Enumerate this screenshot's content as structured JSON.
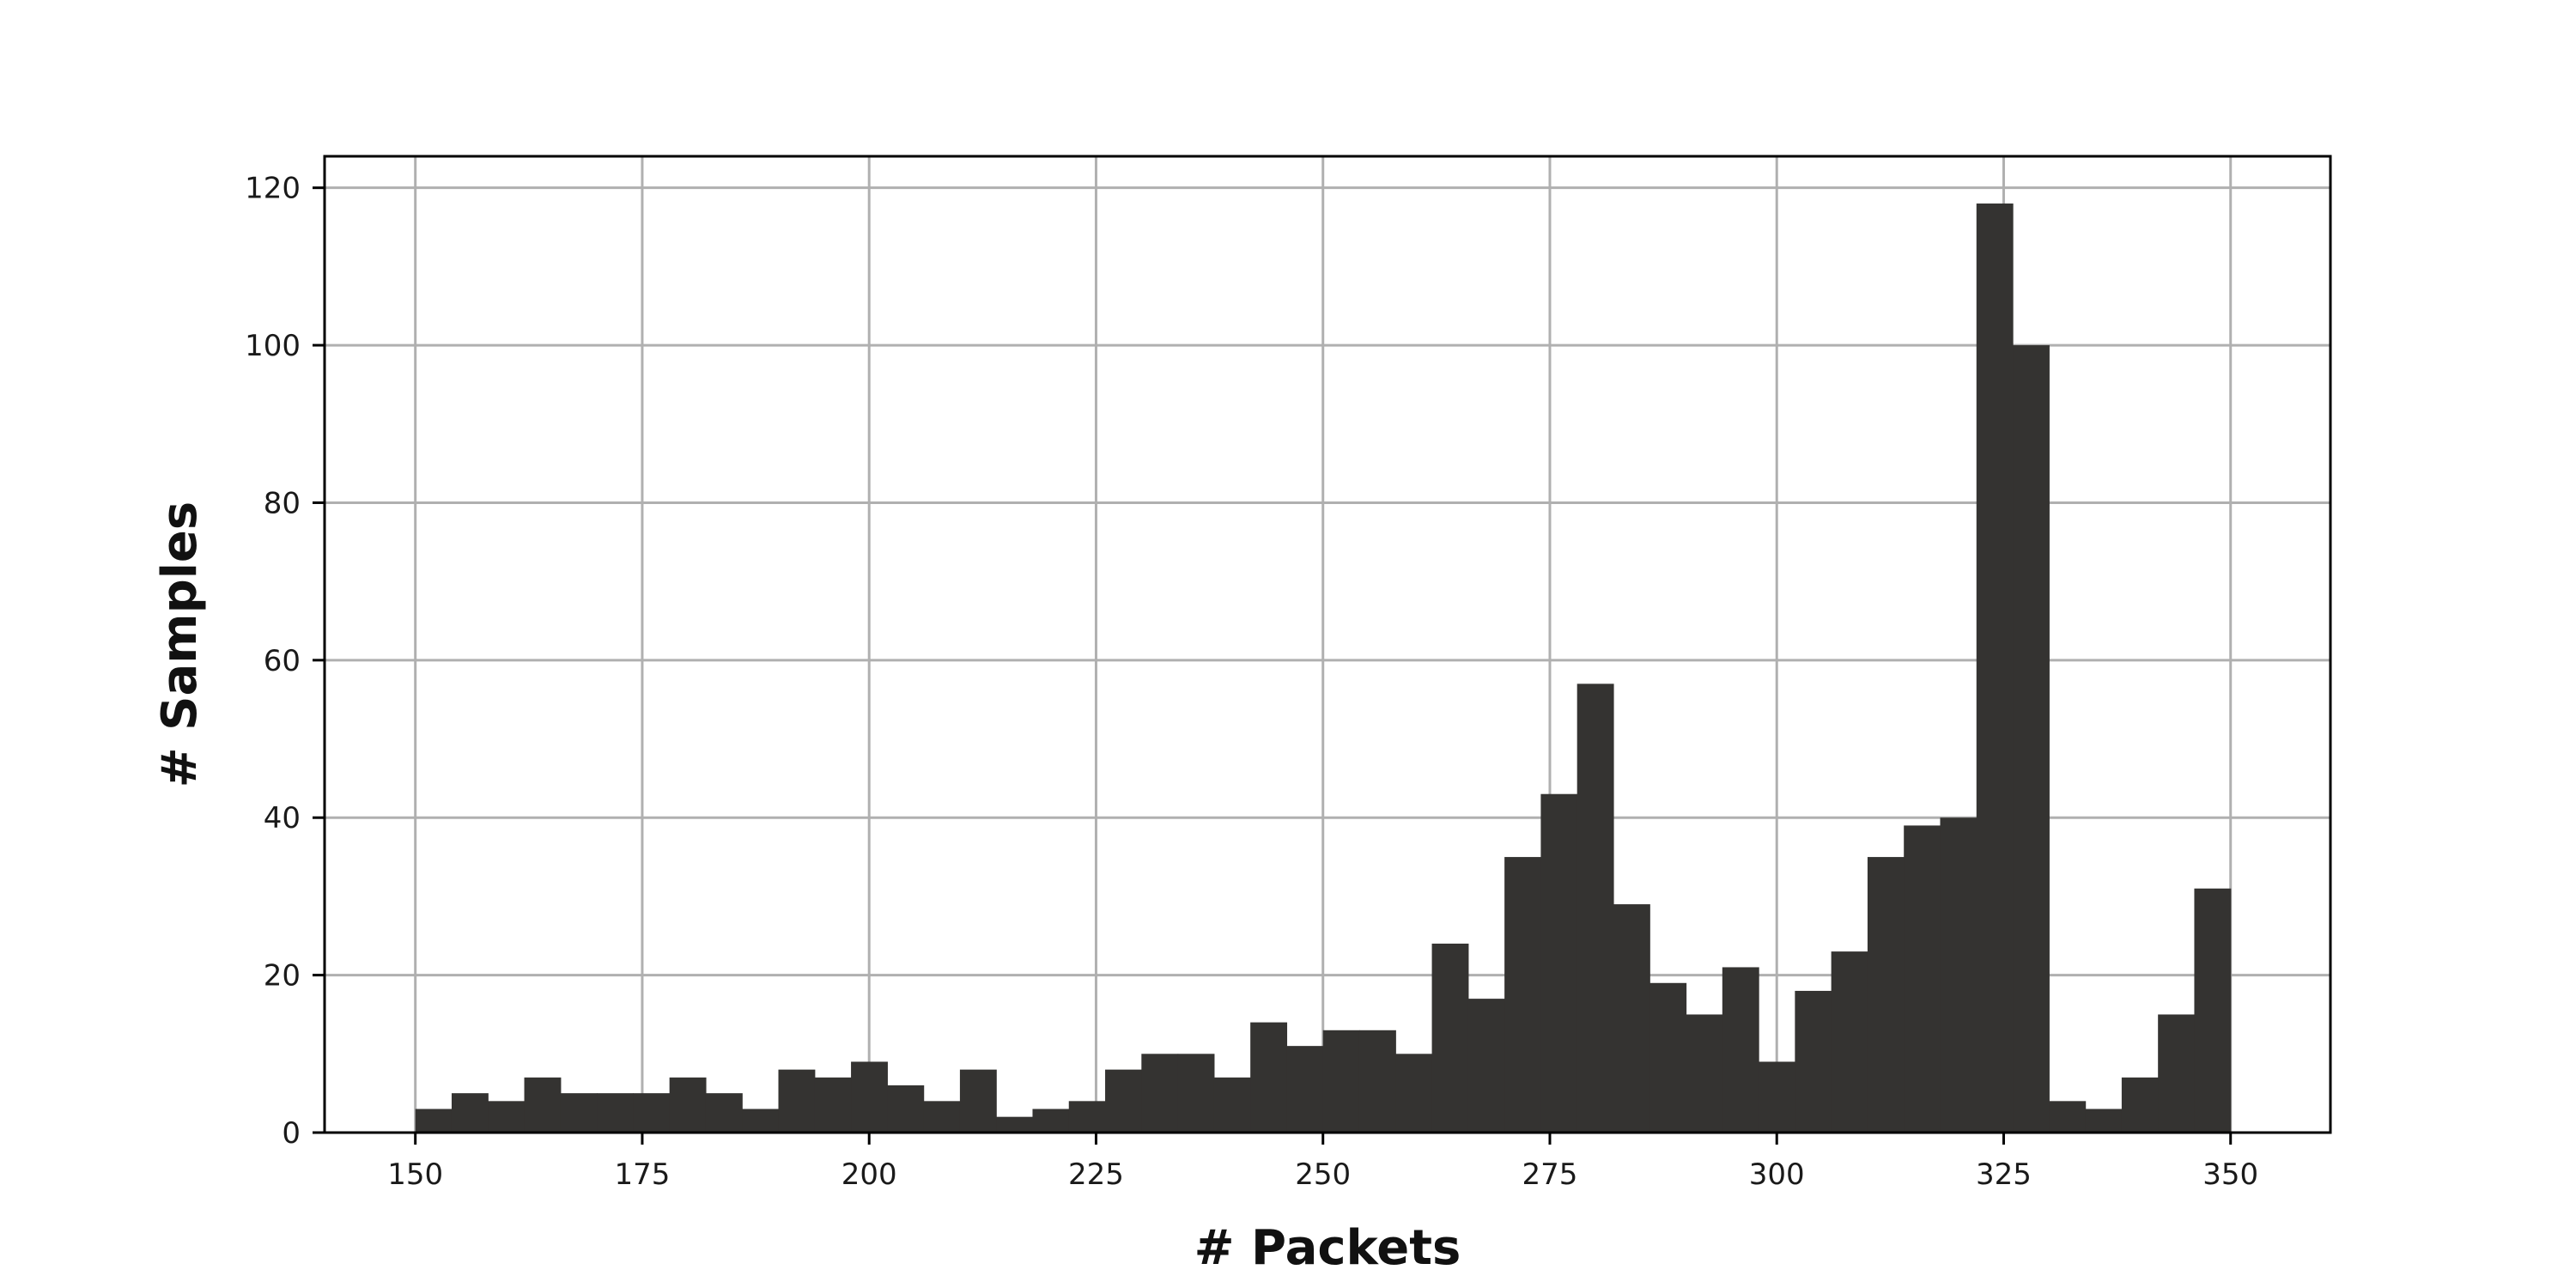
{
  "chart_data": {
    "type": "bar",
    "subtype": "histogram",
    "title": "",
    "xlabel": "# Packets",
    "ylabel": "# Samples",
    "xlim": [
      140,
      361
    ],
    "ylim": [
      0,
      124
    ],
    "xticks": [
      150,
      175,
      200,
      225,
      250,
      275,
      300,
      325,
      350
    ],
    "yticks": [
      0,
      20,
      40,
      60,
      80,
      100,
      120
    ],
    "grid": true,
    "bin_width": 4,
    "bin_start": 150,
    "values": [
      3,
      5,
      4,
      7,
      5,
      5,
      5,
      7,
      5,
      3,
      8,
      7,
      9,
      6,
      4,
      8,
      2,
      3,
      4,
      8,
      10,
      10,
      7,
      14,
      11,
      13,
      13,
      10,
      24,
      17,
      35,
      43,
      57,
      29,
      19,
      15,
      21,
      9,
      18,
      23,
      35,
      39,
      40,
      118,
      100,
      4,
      3,
      7,
      15,
      31
    ],
    "colors": {
      "bar": "#343331",
      "grid": "#b0b0b0",
      "axes": "#000000"
    }
  }
}
